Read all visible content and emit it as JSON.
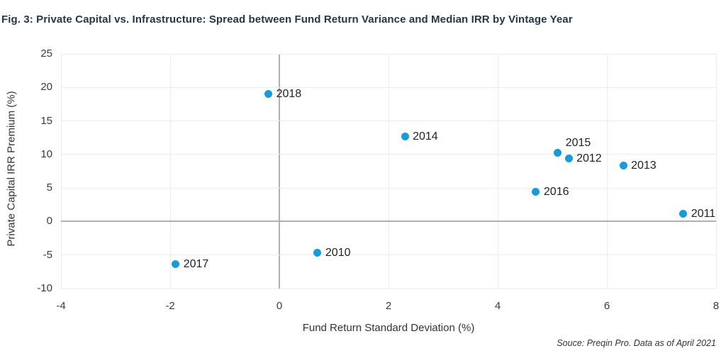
{
  "title": "Fig. 3: Private Capital vs. Infrastructure: Spread between Fund Return Variance and Median IRR by Vintage Year",
  "source_note": "Souce: Preqin Pro. Data as of April 2021",
  "colors": {
    "point": "#189cd8",
    "title_text": "#253746",
    "grid": "#ececec",
    "zero_line": "#b0b0b0",
    "tick_text": "#3a3a3a",
    "label_text": "#222222"
  },
  "chart_data": {
    "type": "scatter",
    "title": "Fig. 3: Private Capital vs. Infrastructure: Spread between Fund Return Variance and Median IRR by Vintage Year",
    "xlabel": "Fund Return Standard Deviation (%)",
    "ylabel": "Private Capital IRR Premium (%)",
    "xlim": [
      -4,
      8
    ],
    "ylim": [
      -10,
      25
    ],
    "xticks": [
      -4,
      -2,
      0,
      2,
      4,
      6,
      8
    ],
    "yticks": [
      25,
      20,
      15,
      10,
      5,
      0,
      -5,
      -10
    ],
    "grid": true,
    "zero_axis_lines": true,
    "legend": "none",
    "points": [
      {
        "label": "2018",
        "x": -0.2,
        "y": 19.0,
        "label_position": "right"
      },
      {
        "label": "2014",
        "x": 2.3,
        "y": 12.7,
        "label_position": "right"
      },
      {
        "label": "2015",
        "x": 5.1,
        "y": 10.3,
        "label_position": "above-right"
      },
      {
        "label": "2012",
        "x": 5.3,
        "y": 9.4,
        "label_position": "right"
      },
      {
        "label": "2013",
        "x": 6.3,
        "y": 8.3,
        "label_position": "right"
      },
      {
        "label": "2016",
        "x": 4.7,
        "y": 4.4,
        "label_position": "right"
      },
      {
        "label": "2011",
        "x": 7.4,
        "y": 1.2,
        "label_position": "right"
      },
      {
        "label": "2010",
        "x": 0.7,
        "y": -4.7,
        "label_position": "right"
      },
      {
        "label": "2017",
        "x": -1.9,
        "y": -6.4,
        "label_position": "right"
      }
    ]
  }
}
